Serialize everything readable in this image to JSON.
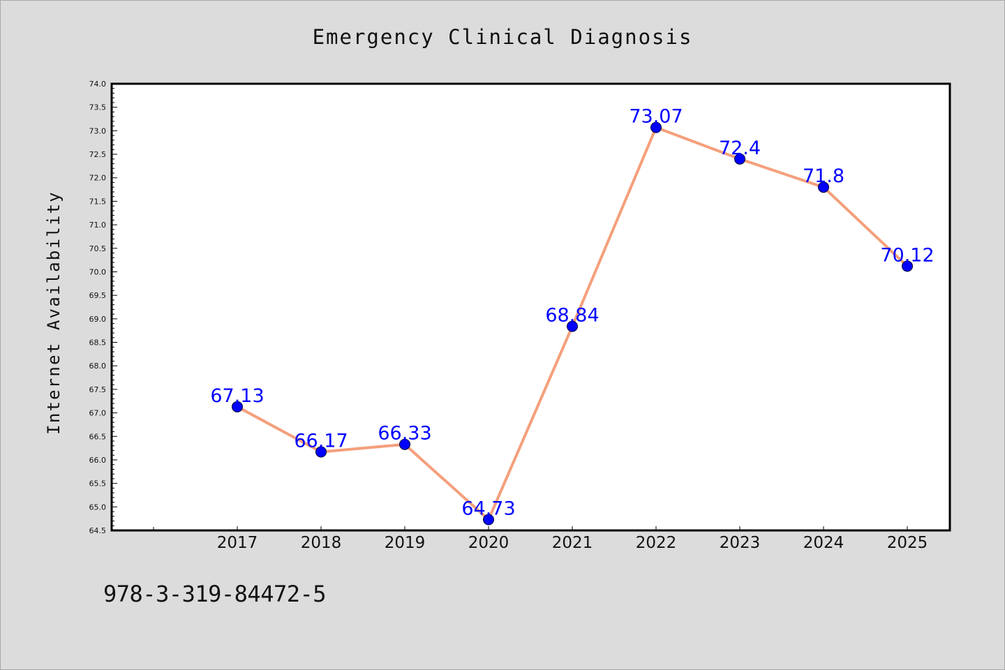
{
  "caption": "978-3-319-84472-5",
  "chart_data": {
    "type": "line",
    "title": "Emergency Clinical Diagnosis",
    "xlabel": "",
    "ylabel": "Internet Availability",
    "categories": [
      "2017",
      "2018",
      "2019",
      "2020",
      "2021",
      "2022",
      "2023",
      "2024",
      "2025"
    ],
    "series": [
      {
        "values": [
          67.13,
          66.17,
          66.33,
          64.73,
          68.84,
          73.07,
          72.4,
          71.8,
          70.12
        ],
        "labels": [
          "67.13",
          "66.17",
          "66.33",
          "64.73",
          "68.84",
          "73.07",
          "72.4",
          "71.8",
          "70.12"
        ],
        "line_color": "#f4a07c",
        "marker_color": "#0000ff"
      }
    ],
    "ylim": [
      64.5,
      74.0
    ],
    "yticks": [
      "64.5",
      "65.0",
      "65.5",
      "66.0",
      "66.5",
      "67.0",
      "67.5",
      "68.0",
      "68.5",
      "69.0",
      "69.5",
      "70.0",
      "70.5",
      "71.0",
      "71.5",
      "72.0",
      "72.5",
      "73.0",
      "73.5",
      "74.0"
    ],
    "grid": false,
    "label_color": "#0000ff",
    "background": "#dcdcdc",
    "plot_background": "#ffffff"
  }
}
